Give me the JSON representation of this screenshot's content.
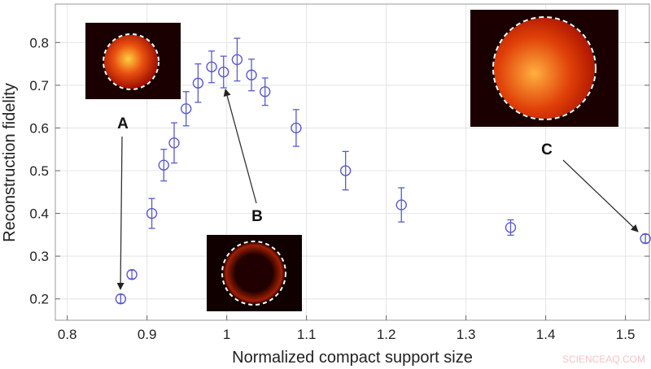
{
  "chart_data": {
    "type": "scatter",
    "xlabel": "Normalized compact support size",
    "ylabel": "Reconstruction fidelity",
    "xlim": [
      0.785,
      1.53
    ],
    "ylim": [
      0.15,
      0.89
    ],
    "xticks": [
      "0.8",
      "0.9",
      "1",
      "1.1",
      "1.2",
      "1.3",
      "1.4",
      "1.5"
    ],
    "yticks": [
      "0.2",
      "0.3",
      "0.4",
      "0.5",
      "0.6",
      "0.7",
      "0.8"
    ],
    "grid": true,
    "marker_color": "#5a5ad0",
    "points": [
      {
        "x": 0.867,
        "y": 0.2,
        "err": 0.01
      },
      {
        "x": 0.881,
        "y": 0.257,
        "err": 0.01
      },
      {
        "x": 0.906,
        "y": 0.4,
        "err": 0.035
      },
      {
        "x": 0.921,
        "y": 0.513,
        "err": 0.037
      },
      {
        "x": 0.934,
        "y": 0.565,
        "err": 0.047
      },
      {
        "x": 0.949,
        "y": 0.645,
        "err": 0.04
      },
      {
        "x": 0.964,
        "y": 0.705,
        "err": 0.045
      },
      {
        "x": 0.981,
        "y": 0.743,
        "err": 0.037
      },
      {
        "x": 0.996,
        "y": 0.731,
        "err": 0.037
      },
      {
        "x": 1.013,
        "y": 0.76,
        "err": 0.05
      },
      {
        "x": 1.031,
        "y": 0.724,
        "err": 0.037
      },
      {
        "x": 1.048,
        "y": 0.685,
        "err": 0.032
      },
      {
        "x": 1.087,
        "y": 0.6,
        "err": 0.043
      },
      {
        "x": 1.149,
        "y": 0.5,
        "err": 0.045
      },
      {
        "x": 1.219,
        "y": 0.42,
        "err": 0.04
      },
      {
        "x": 1.356,
        "y": 0.367,
        "err": 0.018
      },
      {
        "x": 1.525,
        "y": 0.341,
        "err": 0.01
      }
    ],
    "annotations": [
      {
        "label": "A",
        "target_point": 0
      },
      {
        "label": "B",
        "target_point": 8
      },
      {
        "label": "C",
        "target_point": 16
      }
    ]
  },
  "watermark": "SCIENCEAQ.COM"
}
